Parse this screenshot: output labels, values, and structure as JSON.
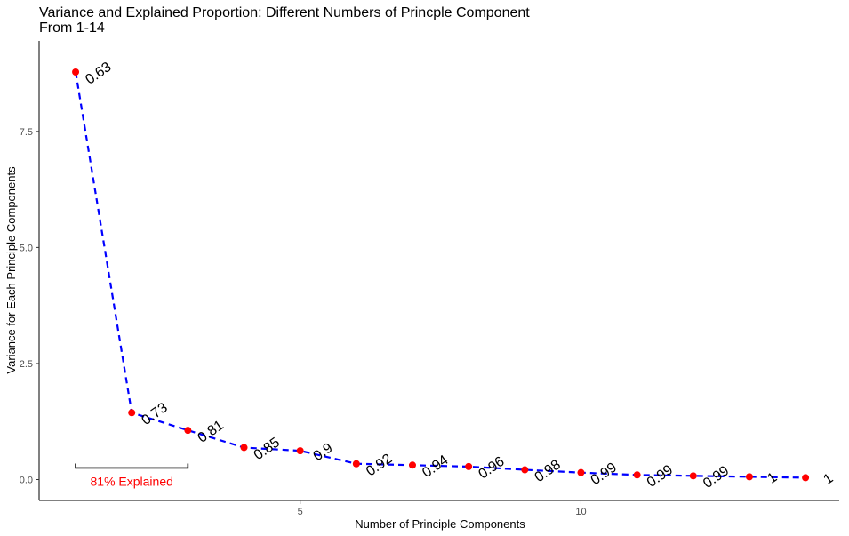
{
  "chart_data": {
    "type": "line",
    "title": "Variance and Explained Proportion: Different Numbers of Princple Component\nFrom 1-14",
    "xlabel": "Number of Principle Components",
    "ylabel": "Variance for Each Principle Components",
    "xlim": [
      0.35,
      14.6
    ],
    "ylim": [
      -0.45,
      9.45
    ],
    "x_ticks": [
      5,
      10
    ],
    "x_tick_labels": [
      "5",
      "10"
    ],
    "y_ticks": [
      0.0,
      2.5,
      5.0,
      7.5
    ],
    "y_tick_labels": [
      "0.0",
      "2.5",
      "5.0",
      "7.5"
    ],
    "grid": false,
    "series": [
      {
        "x": [
          1,
          2,
          3,
          4,
          5,
          6,
          7,
          8,
          9,
          10,
          11,
          12,
          13,
          14
        ],
        "values": [
          8.78,
          1.44,
          1.06,
          0.69,
          0.62,
          0.34,
          0.31,
          0.28,
          0.21,
          0.15,
          0.1,
          0.08,
          0.06,
          0.04
        ],
        "labels": [
          "0.63",
          "0.73",
          "0.81",
          "0.85",
          "0.9",
          "0.92",
          "0.94",
          "0.96",
          "0.98",
          "0.99",
          "0.99",
          "0.99",
          "1",
          "1"
        ],
        "line_color": "#0000ff",
        "point_color": "#ff0000"
      }
    ],
    "annotation": {
      "text": "81% Explained",
      "x_start": 1,
      "x_end": 3,
      "y": 0.25,
      "color": "#ff0000"
    }
  }
}
